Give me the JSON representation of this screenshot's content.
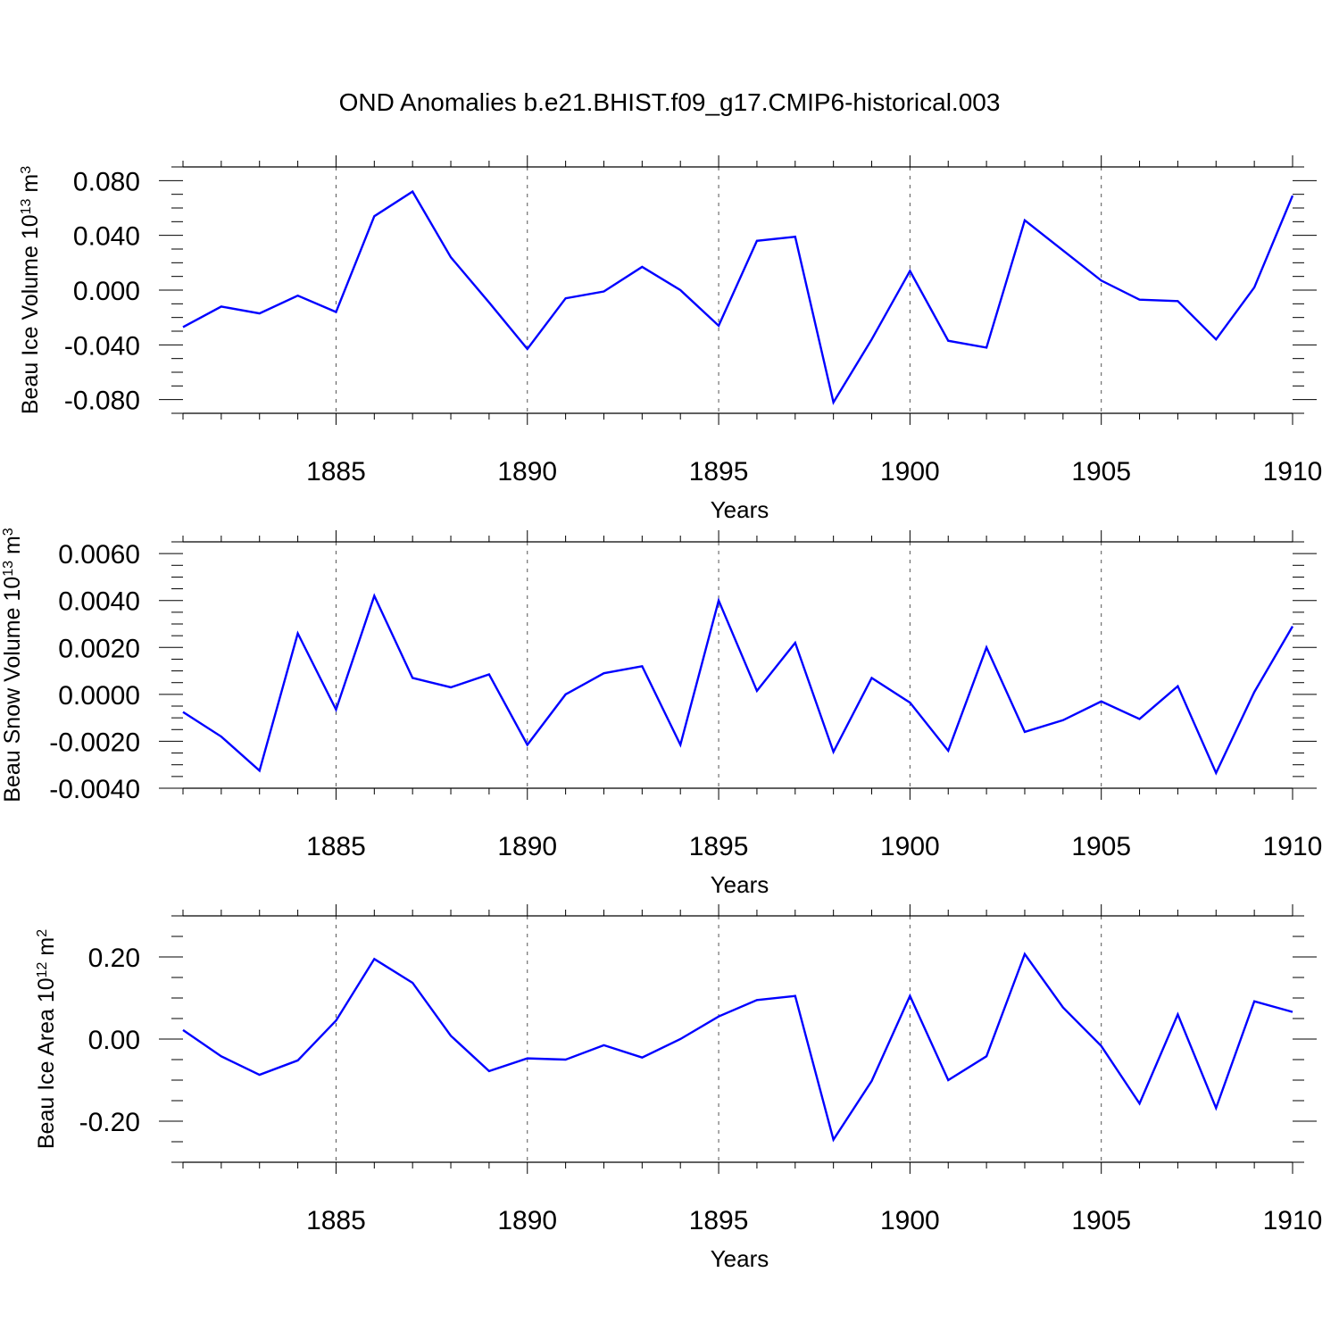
{
  "title": "OND Anomalies b.e21.BHIST.f09_g17.CMIP6-historical.003",
  "colors": {
    "line": "#0000ff",
    "axis": "#000000",
    "grid": "#555555"
  },
  "chart_data": [
    {
      "type": "line",
      "ylabel_main": "Beau Ice Volume 10",
      "ylabel_exp": "13",
      "ylabel_unit": " m",
      "ylabel_unit_exp": "3",
      "xlabel": "Years",
      "xlim": [
        1881,
        1910
      ],
      "ylim": [
        -0.09,
        0.09
      ],
      "x_ticks": [
        1885,
        1890,
        1895,
        1900,
        1905,
        1910
      ],
      "x_tick_labels": [
        "1885",
        "1890",
        "1895",
        "1900",
        "1905",
        "1910"
      ],
      "y_ticks": [
        -0.08,
        -0.04,
        0.0,
        0.04,
        0.08
      ],
      "y_tick_labels": [
        "-0.080",
        "-0.040",
        "0.000",
        "0.040",
        "0.080"
      ],
      "y_minor_step": 0.01,
      "grid": "vertical dashed at major x ticks",
      "x": [
        1881,
        1882,
        1883,
        1884,
        1885,
        1886,
        1887,
        1888,
        1889,
        1890,
        1891,
        1892,
        1893,
        1894,
        1895,
        1896,
        1897,
        1898,
        1899,
        1900,
        1901,
        1902,
        1903,
        1904,
        1905,
        1906,
        1907,
        1908,
        1909,
        1910
      ],
      "series": [
        {
          "values": [
            -0.027,
            -0.012,
            -0.017,
            -0.004,
            -0.016,
            0.054,
            0.072,
            0.024,
            -0.009,
            -0.043,
            -0.006,
            -0.001,
            0.017,
            0.0,
            -0.026,
            0.036,
            0.039,
            -0.082,
            -0.036,
            0.014,
            -0.037,
            -0.042,
            0.051,
            0.029,
            0.007,
            -0.007,
            -0.008,
            -0.036,
            0.002,
            0.069
          ]
        }
      ]
    },
    {
      "type": "line",
      "ylabel_main": "Beau Snow Volume 10",
      "ylabel_exp": "13",
      "ylabel_unit": " m",
      "ylabel_unit_exp": "3",
      "xlabel": "Years",
      "xlim": [
        1881,
        1910
      ],
      "ylim": [
        -0.004,
        0.0065
      ],
      "x_ticks": [
        1885,
        1890,
        1895,
        1900,
        1905,
        1910
      ],
      "x_tick_labels": [
        "1885",
        "1890",
        "1895",
        "1900",
        "1905",
        "1910"
      ],
      "y_ticks": [
        -0.004,
        -0.002,
        0.0,
        0.002,
        0.004,
        0.006
      ],
      "y_tick_labels": [
        "-0.0040",
        "-0.0020",
        "0.0000",
        "0.0020",
        "0.0040",
        "0.0060"
      ],
      "y_minor_step": 0.0005,
      "grid": "vertical dashed at major x ticks",
      "x": [
        1881,
        1882,
        1883,
        1884,
        1885,
        1886,
        1887,
        1888,
        1889,
        1890,
        1891,
        1892,
        1893,
        1894,
        1895,
        1896,
        1897,
        1898,
        1899,
        1900,
        1901,
        1902,
        1903,
        1904,
        1905,
        1906,
        1907,
        1908,
        1909,
        1910
      ],
      "series": [
        {
          "values": [
            -0.00075,
            -0.0018,
            -0.00325,
            0.0026,
            -0.00065,
            0.0042,
            0.0007,
            0.0003,
            0.00085,
            -0.00215,
            0.0,
            0.0009,
            0.0012,
            -0.00215,
            0.004,
            0.00015,
            0.0022,
            -0.00245,
            0.0007,
            -0.00035,
            -0.0024,
            0.002,
            -0.0016,
            -0.0011,
            -0.0003,
            -0.00105,
            0.00035,
            -0.00335,
            0.0001,
            0.0029
          ]
        }
      ]
    },
    {
      "type": "line",
      "ylabel_main": "Beau Ice Area 10",
      "ylabel_exp": "12",
      "ylabel_unit": " m",
      "ylabel_unit_exp": "2",
      "xlabel": "Years",
      "xlim": [
        1881,
        1910
      ],
      "ylim": [
        -0.3,
        0.3
      ],
      "x_ticks": [
        1885,
        1890,
        1895,
        1900,
        1905,
        1910
      ],
      "x_tick_labels": [
        "1885",
        "1890",
        "1895",
        "1900",
        "1905",
        "1910"
      ],
      "y_ticks": [
        -0.2,
        0.0,
        0.2
      ],
      "y_tick_labels": [
        "-0.20",
        "0.00",
        "0.20"
      ],
      "y_minor_step": 0.05,
      "grid": "vertical dashed at major x ticks",
      "x": [
        1881,
        1882,
        1883,
        1884,
        1885,
        1886,
        1887,
        1888,
        1889,
        1890,
        1891,
        1892,
        1893,
        1894,
        1895,
        1896,
        1897,
        1898,
        1899,
        1900,
        1901,
        1902,
        1903,
        1904,
        1905,
        1906,
        1907,
        1908,
        1909,
        1910
      ],
      "series": [
        {
          "values": [
            0.022,
            -0.042,
            -0.087,
            -0.052,
            0.045,
            0.195,
            0.137,
            0.008,
            -0.078,
            -0.047,
            -0.05,
            -0.015,
            -0.045,
            0.0,
            0.055,
            0.095,
            0.105,
            -0.245,
            -0.102,
            0.105,
            -0.1,
            -0.042,
            0.207,
            0.077,
            -0.017,
            -0.157,
            0.06,
            -0.168,
            0.092,
            0.066
          ]
        }
      ]
    }
  ]
}
